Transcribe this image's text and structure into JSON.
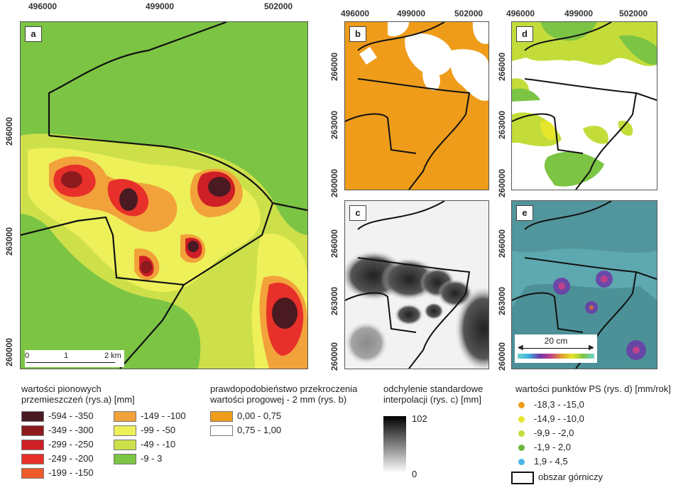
{
  "axes": {
    "x_ticks": [
      "496000",
      "499000",
      "502000"
    ],
    "y_ticks_a": [
      "266000",
      "263000",
      "260000"
    ],
    "y_ticks_small": [
      "266000",
      "263000",
      "260000"
    ]
  },
  "panels": {
    "a": {
      "label": "a"
    },
    "b": {
      "label": "b"
    },
    "c": {
      "label": "c"
    },
    "d": {
      "label": "d"
    },
    "e": {
      "label": "e"
    }
  },
  "scalebar_a": {
    "ticks": [
      "0",
      "1",
      "2 km"
    ]
  },
  "scalebar_e": {
    "label": "20 cm"
  },
  "legend_a": {
    "title": "wartości pionowych przemieszczeń (rys.a) [mm]",
    "items": [
      {
        "label": "-594 - -350",
        "color": "#4a1a22"
      },
      {
        "label": "-349 - -300",
        "color": "#8c1a1e"
      },
      {
        "label": "-299 - -250",
        "color": "#cf1f26"
      },
      {
        "label": "-249 - -200",
        "color": "#e8302a"
      },
      {
        "label": "-199 - -150",
        "color": "#ee5a2a"
      },
      {
        "label": "-149 - -100",
        "color": "#f2a23a"
      },
      {
        "label": "-99 - -50",
        "color": "#eef05a"
      },
      {
        "label": "-49 - -10",
        "color": "#cde04a"
      },
      {
        "label": "-9 - 3",
        "color": "#7cc444"
      }
    ]
  },
  "legend_b": {
    "title": "prawdopodobieństwo przekroczenia wartości progowej - 2 mm (rys. b)",
    "items": [
      {
        "label": "0,00 - 0,75",
        "color": "#ee9c1a"
      },
      {
        "label": "0,75 - 1,00",
        "color": "#ffffff"
      }
    ]
  },
  "legend_c": {
    "title": "odchylenie standardowe interpolacji (rys. c) [mm]",
    "max": "102",
    "min": "0"
  },
  "legend_d": {
    "title": "wartości punktów PS (rys. d) [mm/rok]",
    "items": [
      {
        "label": "-18,3 - -15,0",
        "color": "#ee9c1a"
      },
      {
        "label": "-14,9 - -10,0",
        "color": "#e6e62a"
      },
      {
        "label": "-9,9 - -2,0",
        "color": "#c4dc3a"
      },
      {
        "label": "-1,9 - 2,0",
        "color": "#6cb83a"
      },
      {
        "label": "1,9 - 4,5",
        "color": "#4ab6e6"
      }
    ],
    "boundary_label": "obszar górniczy"
  }
}
